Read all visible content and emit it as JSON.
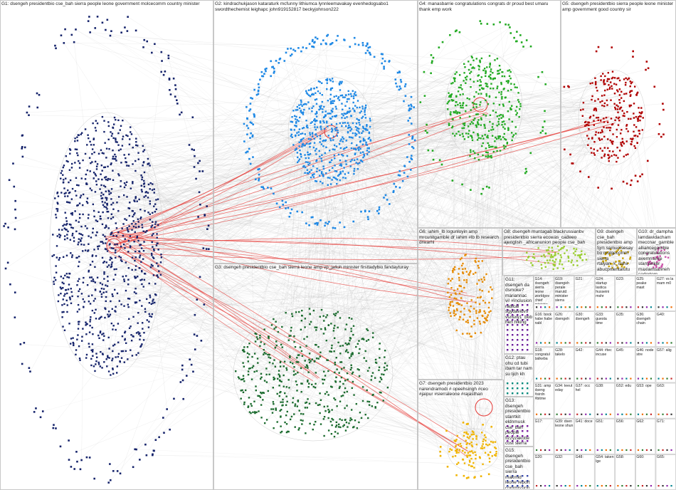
{
  "groups": [
    {
      "label": "G1: dsengeh presidentbio cse_bah sierra people leone government molcecomm country minister"
    },
    {
      "label": "G2: kindrachukjason kataraturk mcfunny lithiumca lynnleemavakay evenhedogsabo1 swordthechemist leighapc john919152817 beckyjohnson222"
    },
    {
      "label": "G3: dsengeh presidentbio cse_bah sierra leone amp vp_jalloh minister firsttadybio fandayturay"
    },
    {
      "label": "G4: manasbarrie congratulations congrats dr proud best umaru thank emp work"
    },
    {
      "label": "G5: dsengeh presidentbio sierra people leone minister amp government good country sir"
    },
    {
      "label": "G6: iahim_lb logunloyin amp mrcunitgamble dr iahim #lb lb research drwarhl"
    },
    {
      "label": "G8: dsengeh muntagab blackrussianbv presidentbio sierra ecowas_cadeeo ajenglish _africanunion people cse_bah"
    },
    {
      "label": "G9: dsengeh cse_bah presidentbio amp fgm samuelsesay bo molgecomm sierra rtaiyan_k_itahir abucpnlentatutu"
    },
    {
      "label": "G10: dr_dampha lamdavidacham meccnar_gamble alliancegamble congratulations avemnsinre stamanker maxiamsanneh sodertom"
    },
    {
      "label": "G7: dsengeh presidentbio 2023 narendramodi # opeehsingh #ceo #jaipur #sierraleone #rajasthan"
    },
    {
      "label": "G11: dsengeh da dsmoke? mariannac vi! #inclusion radical sgydavidvs vsnsxy1_bobhen hiking"
    },
    {
      "label": "G12: ptau ohu cd tubi ibam tar nam su tjch kh"
    },
    {
      "label": "G13: dsengeh presidentbio starrtkit eldnmusk cse_bah people fizzyzakotte cost sierra"
    },
    {
      "label": "G15: dsengeh presidentbio cse_bah sierra makmid leone report commission"
    }
  ],
  "small_groups": [
    {
      "label": "G14: dsengeh sierra leone worldgov chief minister africa #worldgo country"
    },
    {
      "label": "G19: dsengeh perale marutd minister sierra"
    },
    {
      "label": "G21:"
    },
    {
      "label": "G24: startup lastica husseini mshr"
    },
    {
      "label": "G23:"
    },
    {
      "label": "G25: peake mast"
    },
    {
      "label": "G27: vs la mam m0"
    },
    {
      "label": "G16: bock habe habe nabl"
    },
    {
      "label": "G26: dsengeh"
    },
    {
      "label": "G30: dsengeh"
    },
    {
      "label": "G33: guesta time"
    },
    {
      "label": "G35:"
    },
    {
      "label": "G36: dsengeh chain"
    },
    {
      "label": "G40:"
    },
    {
      "label": "G18: congratul balkeba"
    },
    {
      "label": "G28: takelo"
    },
    {
      "label": "G42:"
    },
    {
      "label": "G44: #tec incuse"
    },
    {
      "label": "G45:"
    },
    {
      "label": "G46: node stre"
    },
    {
      "label": "G57: alig"
    },
    {
      "label": "G31: amp dseng #sirdn #bitme"
    },
    {
      "label": "G34: teeut eday"
    },
    {
      "label": "G37: occ hel"
    },
    {
      "label": "G38:"
    },
    {
      "label": "G52: edu"
    },
    {
      "label": "G53: ope"
    },
    {
      "label": "G63:"
    },
    {
      "label": "G17:"
    },
    {
      "label": "G39: dsen leone shun"
    },
    {
      "label": "G41: doce"
    },
    {
      "label": "G51:"
    },
    {
      "label": "G56:"
    },
    {
      "label": "G62:"
    },
    {
      "label": "G71:"
    },
    {
      "label": "G20:"
    },
    {
      "label": "G32:"
    },
    {
      "label": "G48:"
    },
    {
      "label": "G54: taken lge"
    },
    {
      "label": "G58:"
    },
    {
      "label": "G60:"
    },
    {
      "label": "G65:"
    }
  ]
}
